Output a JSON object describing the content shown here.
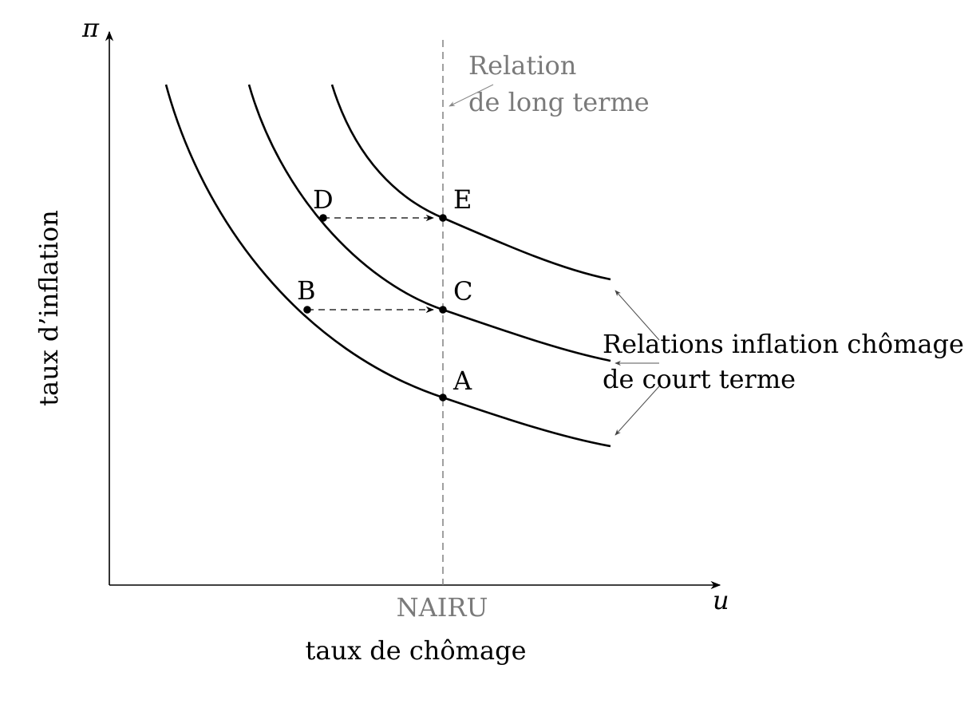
{
  "axes": {
    "y_symbol": "π",
    "x_symbol": "u",
    "y_label": "taux d’inflation",
    "x_label": "taux de chômage"
  },
  "nairu_label": "NAIRU",
  "long_run": {
    "line1": "Relation",
    "line2": "de long terme"
  },
  "short_run": {
    "line1": "Relations inflation chômage",
    "line2": "de court terme"
  },
  "points": {
    "A": "A",
    "B": "B",
    "C": "C",
    "D": "D",
    "E": "E"
  },
  "colors": {
    "curve": "#000000",
    "long_run": "#7a7a7a"
  }
}
